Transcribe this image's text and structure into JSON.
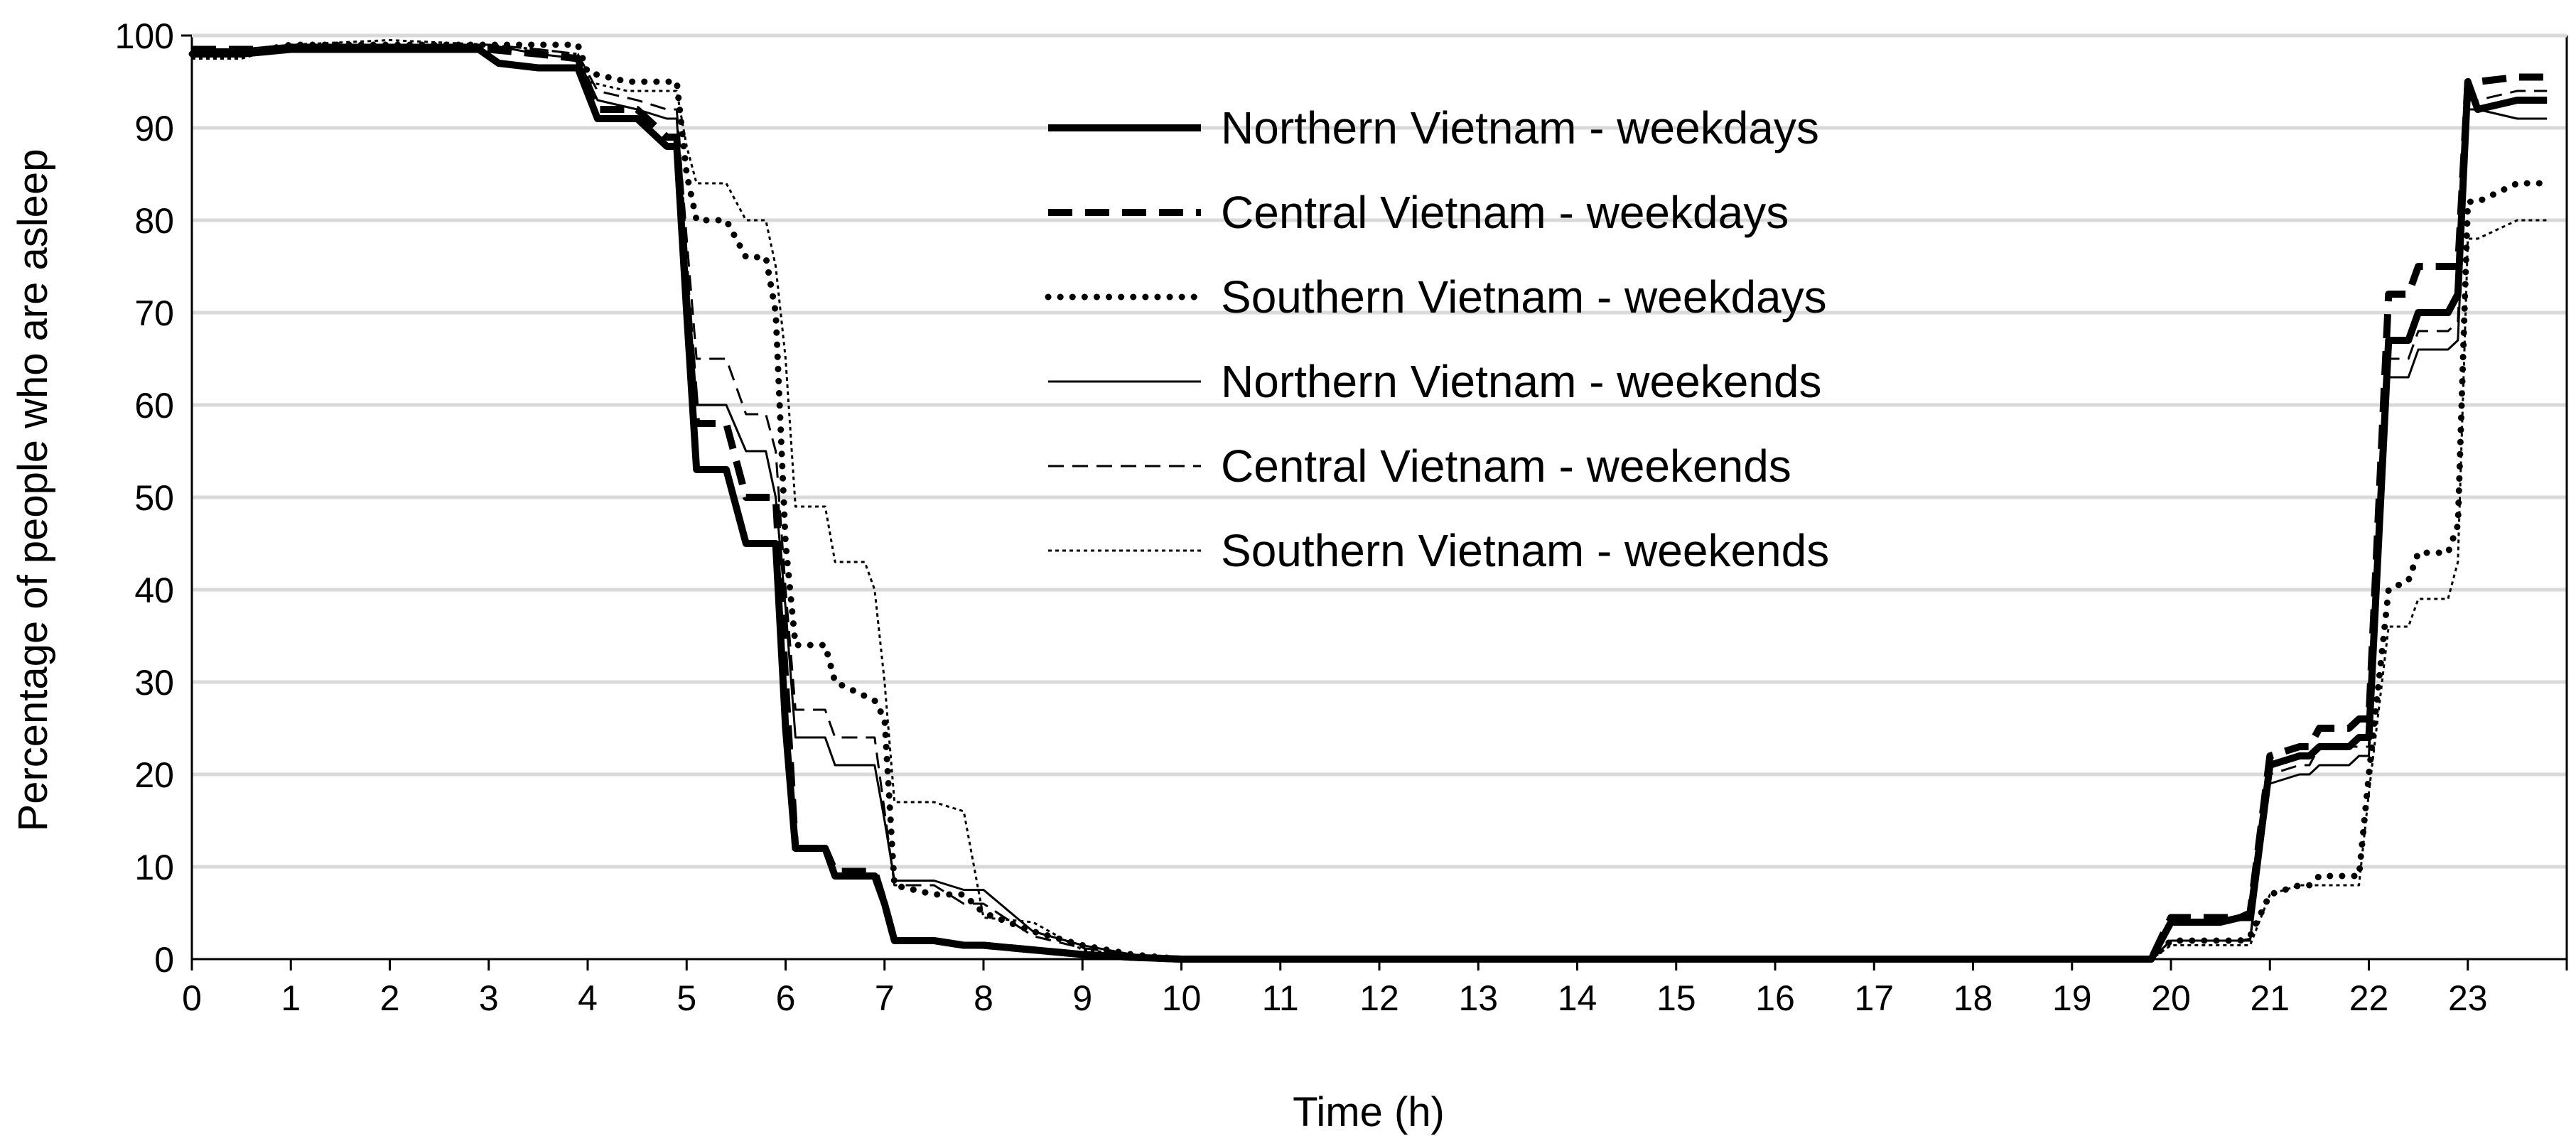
{
  "chart_data": {
    "type": "line",
    "title": "",
    "xlabel": "Time (h)",
    "ylabel": "Percentage of people who are asleep",
    "xlim": [
      0,
      24
    ],
    "ylim": [
      0,
      100
    ],
    "x_ticks": [
      "0",
      "1",
      "2",
      "3",
      "4",
      "5",
      "6",
      "7",
      "8",
      "9",
      "10",
      "11",
      "12",
      "13",
      "14",
      "15",
      "16",
      "17",
      "18",
      "19",
      "20",
      "21",
      "22",
      "23"
    ],
    "y_ticks": [
      "0",
      "10",
      "20",
      "30",
      "40",
      "50",
      "60",
      "70",
      "80",
      "90",
      "100"
    ],
    "grid": true,
    "legend_position": "top-center",
    "series": [
      {
        "name": "Northern Vietnam - weekdays",
        "style": "solid-thick",
        "x": [
          0,
          0.5,
          1,
          2,
          2.9,
          3.1,
          3.5,
          3.9,
          4.1,
          4.5,
          4.8,
          4.9,
          5.0,
          5.1,
          5.4,
          5.6,
          5.8,
          5.9,
          6.0,
          6.1,
          6.4,
          6.5,
          6.9,
          7.0,
          7.1,
          7.5,
          7.8,
          8.0,
          8.5,
          9.0,
          9.5,
          10,
          12,
          15,
          18,
          19.5,
          19.8,
          20.0,
          20.5,
          20.7,
          20.8,
          21.0,
          21.3,
          21.4,
          21.5,
          21.8,
          21.9,
          22.0,
          22.2,
          22.4,
          22.5,
          22.8,
          22.9,
          23.0,
          23.1,
          23.5,
          23.8
        ],
        "values": [
          98,
          98,
          98.5,
          98.5,
          98.5,
          97,
          96.5,
          96.5,
          91,
          91,
          88,
          88,
          70,
          53,
          53,
          45,
          45,
          45,
          25,
          12,
          12,
          9,
          9,
          6,
          2,
          2,
          1.5,
          1.5,
          1,
          0.5,
          0.2,
          0,
          0,
          0,
          0,
          0,
          0,
          4,
          4,
          4.5,
          4.5,
          21,
          22,
          22,
          23,
          23,
          24,
          24,
          67,
          67,
          70,
          70,
          72,
          95,
          92,
          93,
          93
        ]
      },
      {
        "name": "Central Vietnam - weekdays",
        "style": "dashed-thick",
        "x": [
          0,
          0.5,
          1,
          2,
          3,
          3.5,
          3.9,
          4.1,
          4.5,
          4.8,
          4.9,
          5.0,
          5.1,
          5.4,
          5.6,
          5.8,
          5.9,
          6.0,
          6.1,
          6.4,
          6.5,
          6.9,
          7.0,
          7.1,
          7.5,
          7.8,
          8.0,
          8.5,
          9.0,
          9.5,
          10,
          12,
          15,
          18,
          19.5,
          19.8,
          20.0,
          20.5,
          20.7,
          20.8,
          21.0,
          21.3,
          21.4,
          21.5,
          21.8,
          21.9,
          22.0,
          22.2,
          22.4,
          22.5,
          22.8,
          22.9,
          23.0,
          23.1,
          23.5,
          23.8
        ],
        "values": [
          98.5,
          98.5,
          98.5,
          98.5,
          98.5,
          98,
          97.5,
          92,
          92,
          89,
          89,
          72,
          58,
          58,
          50,
          50,
          50,
          30,
          12,
          12,
          9.5,
          9.5,
          6,
          2,
          2,
          1.5,
          1.5,
          1,
          0.5,
          0.2,
          0,
          0,
          0,
          0,
          0,
          0,
          4.5,
          4.5,
          4.5,
          5,
          22,
          23,
          23,
          25,
          25,
          26,
          26,
          72,
          72,
          75,
          75,
          75,
          95,
          95,
          95.5,
          95.5
        ]
      },
      {
        "name": "Southern Vietnam - weekdays",
        "style": "dotted-thick",
        "x": [
          0,
          0.5,
          1,
          2,
          3,
          3.5,
          3.9,
          4.0,
          4.4,
          4.8,
          4.9,
          5.0,
          5.1,
          5.4,
          5.6,
          5.8,
          5.9,
          6.0,
          6.1,
          6.4,
          6.5,
          6.9,
          7.0,
          7.1,
          7.5,
          7.8,
          8.0,
          8.5,
          9.0,
          9.5,
          10,
          12,
          15,
          18,
          19.5,
          19.8,
          20.0,
          20.5,
          20.7,
          20.8,
          21.0,
          21.3,
          21.4,
          21.5,
          21.8,
          21.9,
          22.0,
          22.2,
          22.4,
          22.5,
          22.8,
          22.9,
          23.0,
          23.1,
          23.5,
          23.8
        ],
        "values": [
          98,
          98,
          99,
          99,
          99,
          99,
          99,
          96,
          95,
          95,
          95,
          85,
          80,
          80,
          76,
          76,
          70,
          45,
          34,
          34,
          30,
          28,
          26,
          8,
          7,
          7,
          5,
          3,
          1.5,
          0.5,
          0,
          0,
          0,
          0,
          0,
          0,
          2,
          2,
          2,
          2.5,
          7,
          8,
          8,
          9,
          9,
          9,
          20,
          40,
          41,
          44,
          44,
          47,
          82,
          82,
          84,
          84
        ]
      },
      {
        "name": "Northern Vietnam - weekends",
        "style": "solid-thin",
        "x": [
          0,
          0.5,
          1,
          2,
          3,
          3.5,
          3.9,
          4.1,
          4.5,
          4.8,
          4.9,
          5.0,
          5.1,
          5.4,
          5.6,
          5.8,
          5.9,
          6.0,
          6.1,
          6.4,
          6.5,
          6.9,
          7.0,
          7.1,
          7.5,
          7.8,
          8.0,
          8.5,
          9.0,
          9.5,
          10,
          12,
          15,
          18,
          19.5,
          19.8,
          20.0,
          20.5,
          20.7,
          20.8,
          21.0,
          21.3,
          21.4,
          21.5,
          21.8,
          21.9,
          22.0,
          22.2,
          22.4,
          22.5,
          22.8,
          22.9,
          23.0,
          23.1,
          23.5,
          23.8
        ],
        "values": [
          98.5,
          98.5,
          99,
          99,
          99,
          98,
          97.5,
          93,
          92,
          91,
          91,
          75,
          60,
          60,
          55,
          55,
          50,
          38,
          24,
          24,
          21,
          21,
          15,
          8.5,
          8.5,
          7.5,
          7.5,
          3,
          1.5,
          0.5,
          0,
          0,
          0,
          0,
          0,
          0,
          2,
          2,
          2,
          2,
          19,
          20,
          20,
          21,
          21,
          22,
          22,
          63,
          63,
          66,
          66,
          67,
          92,
          92,
          91,
          91
        ]
      },
      {
        "name": "Central Vietnam - weekends",
        "style": "dashed-thin",
        "x": [
          0,
          0.5,
          1,
          2,
          3,
          3.5,
          3.9,
          4.1,
          4.5,
          4.8,
          4.9,
          5.0,
          5.1,
          5.4,
          5.6,
          5.8,
          5.9,
          6.0,
          6.1,
          6.4,
          6.5,
          6.9,
          7.0,
          7.1,
          7.5,
          7.8,
          8.0,
          8.5,
          9.0,
          9.5,
          10,
          12,
          15,
          18,
          19.5,
          19.8,
          20.0,
          20.5,
          20.7,
          20.8,
          21.0,
          21.3,
          21.4,
          21.5,
          21.8,
          21.9,
          22.0,
          22.2,
          22.4,
          22.5,
          22.8,
          22.9,
          23.0,
          23.1,
          23.5,
          23.8
        ],
        "values": [
          98.5,
          98.5,
          99,
          99,
          99,
          98.5,
          98,
          94,
          93,
          92,
          92,
          78,
          65,
          65,
          59,
          59,
          55,
          40,
          27,
          27,
          24,
          24,
          16,
          8,
          8,
          6,
          6,
          2.5,
          1.2,
          0.5,
          0,
          0,
          0,
          0,
          0,
          0,
          2,
          2,
          2,
          2.2,
          20,
          21,
          21,
          23,
          23,
          23,
          23,
          65,
          65,
          68,
          68,
          69,
          93,
          93,
          94,
          94
        ]
      },
      {
        "name": "Southern Vietnam - weekends",
        "style": "dotted-thin",
        "x": [
          0,
          0.5,
          1,
          2,
          3,
          3.5,
          3.9,
          4.0,
          4.4,
          4.8,
          4.9,
          5.0,
          5.1,
          5.4,
          5.6,
          5.8,
          5.9,
          6.0,
          6.1,
          6.4,
          6.5,
          6.8,
          6.9,
          7.0,
          7.1,
          7.5,
          7.8,
          8.0,
          8.5,
          9.0,
          9.5,
          10,
          12,
          15,
          18,
          19.5,
          19.8,
          20.0,
          20.5,
          20.7,
          20.8,
          21.0,
          21.3,
          21.4,
          21.5,
          21.8,
          21.9,
          22.0,
          22.2,
          22.4,
          22.5,
          22.8,
          22.9,
          23.0,
          23.1,
          23.5,
          23.8
        ],
        "values": [
          97.5,
          97.5,
          99,
          99.5,
          99,
          98.5,
          98,
          95,
          94,
          94,
          94,
          88,
          84,
          84,
          80,
          80,
          75,
          65,
          49,
          49,
          43,
          43,
          40,
          30,
          17,
          17,
          16,
          4.5,
          4,
          1,
          0.5,
          0,
          0,
          0,
          0,
          0,
          0,
          1.5,
          1.5,
          1.5,
          1.5,
          7,
          8,
          8,
          8,
          8,
          8,
          18,
          36,
          36,
          39,
          39,
          43,
          78,
          78,
          80,
          80
        ]
      }
    ]
  }
}
